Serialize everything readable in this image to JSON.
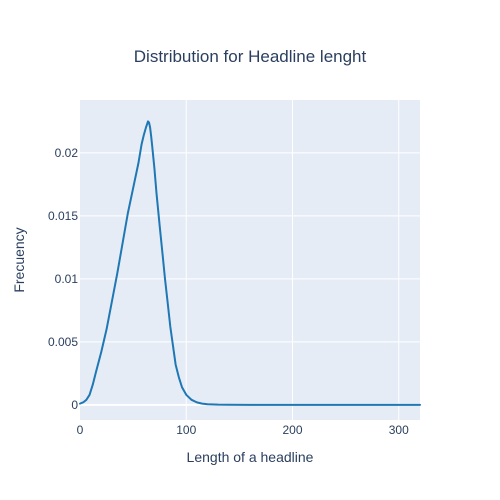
{
  "chart_data": {
    "type": "line",
    "title": "Distribution for Headline lenght",
    "xlabel": "Length of a headline",
    "ylabel": "Frecuency",
    "xlim": [
      0,
      320
    ],
    "ylim": [
      -0.0012,
      0.0242
    ],
    "x_ticks": [
      0,
      100,
      200,
      300
    ],
    "x_tick_labels": [
      "0",
      "100",
      "200",
      "300"
    ],
    "y_ticks": [
      0,
      0.005,
      0.01,
      0.015,
      0.02
    ],
    "y_tick_labels": [
      "0",
      "0.005",
      "0.01",
      "0.015",
      "0.02"
    ],
    "grid": true,
    "legend": "none",
    "series": [
      {
        "color": "#1f77b4",
        "x": [
          0,
          3,
          6,
          9,
          12,
          15,
          20,
          25,
          30,
          35,
          40,
          45,
          50,
          55,
          58,
          60,
          62,
          64,
          65,
          66,
          67,
          68,
          70,
          72,
          75,
          78,
          80,
          82,
          85,
          88,
          90,
          93,
          96,
          100,
          105,
          110,
          115,
          120,
          130,
          140,
          160,
          200,
          250,
          320
        ],
        "y": [
          0.0001,
          0.0002,
          0.0004,
          0.0008,
          0.0016,
          0.0026,
          0.0042,
          0.006,
          0.0082,
          0.0104,
          0.0128,
          0.0152,
          0.0172,
          0.0192,
          0.0207,
          0.0214,
          0.022,
          0.0225,
          0.0224,
          0.022,
          0.0213,
          0.0205,
          0.0188,
          0.0168,
          0.0142,
          0.0117,
          0.01,
          0.0085,
          0.0062,
          0.0044,
          0.0032,
          0.0022,
          0.0014,
          0.0008,
          0.0004,
          0.0002,
          0.0001,
          5e-05,
          2e-05,
          1e-05,
          0.0,
          0.0,
          0.0,
          0.0
        ]
      }
    ]
  }
}
